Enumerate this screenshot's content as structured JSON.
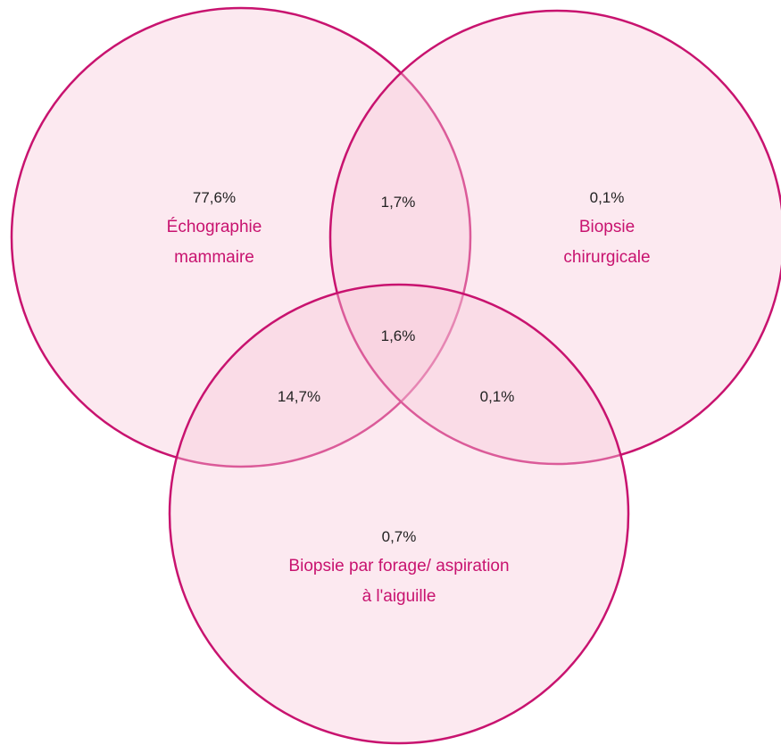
{
  "chart_data": {
    "type": "venn",
    "sets": [
      {
        "name": "Échographie mammaire",
        "color": "#c8136f"
      },
      {
        "name": "Biopsie chirurgicale",
        "color": "#c8136f"
      },
      {
        "name": "Biopsie par forage/ aspiration à l'aiguille",
        "color": "#c8136f"
      }
    ],
    "fill": "#f7c9da",
    "values": [
      77.6,
      1.7,
      0.1,
      14.7,
      1.6,
      0.1,
      0.7
    ],
    "value_labels": [
      "77,6%",
      "1,7%",
      "0,1%",
      "14,7%",
      "1,6%",
      "0,1%",
      "0,7%"
    ]
  }
}
